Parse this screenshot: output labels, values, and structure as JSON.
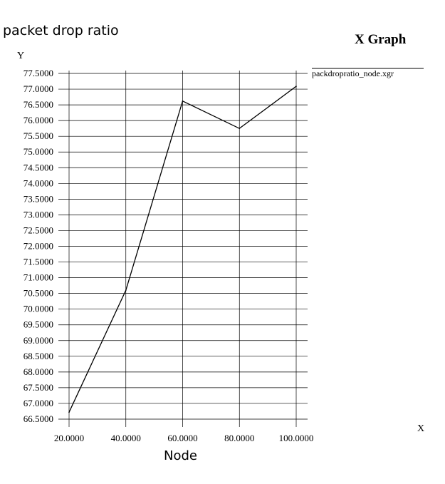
{
  "header": {
    "title": "packet drop ratio",
    "graph_title": "X Graph"
  },
  "chart_data": {
    "type": "line",
    "title": "packet drop ratio",
    "xlabel": "Node",
    "ylabel": "",
    "x_axis_letter": "X",
    "y_axis_letter": "Y",
    "xlim": [
      20,
      100
    ],
    "ylim": [
      66.5,
      77.5
    ],
    "x_ticks": [
      20,
      40,
      60,
      80,
      100
    ],
    "y_tick_step": 0.5,
    "tick_decimals": 4,
    "grid": true,
    "legend": "right",
    "series": [
      {
        "name": "packdropratio_node.xgr",
        "color": "#000000",
        "x": [
          20,
          40,
          60,
          80,
          100
        ],
        "y": [
          66.72,
          70.6,
          76.62,
          75.75,
          77.09
        ]
      }
    ]
  }
}
